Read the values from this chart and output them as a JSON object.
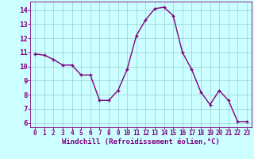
{
  "x": [
    0,
    1,
    2,
    3,
    4,
    5,
    6,
    7,
    8,
    9,
    10,
    11,
    12,
    13,
    14,
    15,
    16,
    17,
    18,
    19,
    20,
    21,
    22,
    23
  ],
  "y": [
    10.9,
    10.8,
    10.5,
    10.1,
    10.1,
    9.4,
    9.4,
    7.6,
    7.6,
    8.3,
    9.8,
    12.2,
    13.3,
    14.1,
    14.2,
    13.6,
    11.0,
    9.8,
    8.2,
    7.3,
    8.3,
    7.6,
    6.1,
    6.1
  ],
  "line_color": "#800080",
  "marker": "P",
  "marker_size": 2.5,
  "bg_color": "#ccffff",
  "grid_color": "#99cccc",
  "xlabel": "Windchill (Refroidissement éolien,°C)",
  "ylim": [
    5.7,
    14.6
  ],
  "xlim": [
    -0.5,
    23.5
  ],
  "yticks": [
    6,
    7,
    8,
    9,
    10,
    11,
    12,
    13,
    14
  ],
  "xticks": [
    0,
    1,
    2,
    3,
    4,
    5,
    6,
    7,
    8,
    9,
    10,
    11,
    12,
    13,
    14,
    15,
    16,
    17,
    18,
    19,
    20,
    21,
    22,
    23
  ],
  "tick_label_color": "#800080",
  "xlabel_color": "#800080",
  "xlabel_fontsize": 6.5,
  "ytick_fontsize": 6.5,
  "xtick_fontsize": 5.5,
  "linewidth": 1.0,
  "spine_color": "#800080"
}
